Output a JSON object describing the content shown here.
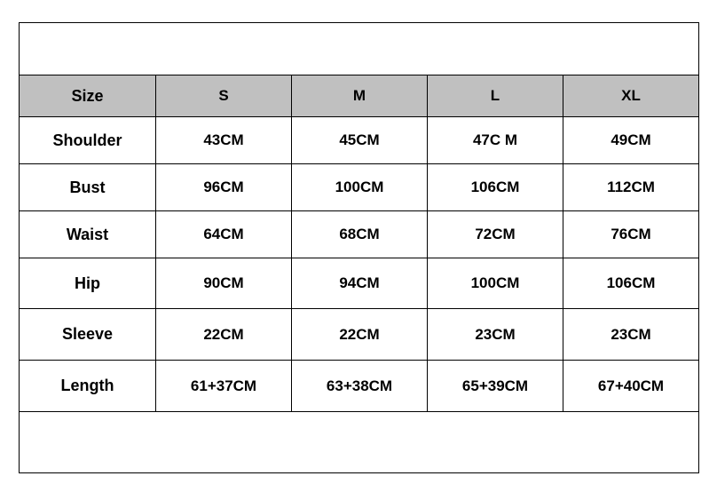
{
  "header": {
    "label": "Size",
    "sizes": [
      "S",
      "M",
      "L",
      "XL"
    ]
  },
  "rows": [
    {
      "label": "Shoulder",
      "values": [
        "43CM",
        "45CM",
        "47C M",
        "49CM"
      ]
    },
    {
      "label": "Bust",
      "values": [
        "96CM",
        "100CM",
        "106CM",
        "112CM"
      ]
    },
    {
      "label": "Waist",
      "values": [
        "64CM",
        "68CM",
        "72CM",
        "76CM"
      ]
    },
    {
      "label": "Hip",
      "values": [
        "90CM",
        "94CM",
        "100CM",
        "106CM"
      ]
    },
    {
      "label": "Sleeve",
      "values": [
        "22CM",
        "22CM",
        "23CM",
        "23CM"
      ]
    },
    {
      "label": "Length",
      "values": [
        "61+37CM",
        "63+38CM",
        "65+39CM",
        "67+40CM"
      ]
    }
  ],
  "colors": {
    "header_bg": "#c0c0c0",
    "border": "#000000"
  }
}
